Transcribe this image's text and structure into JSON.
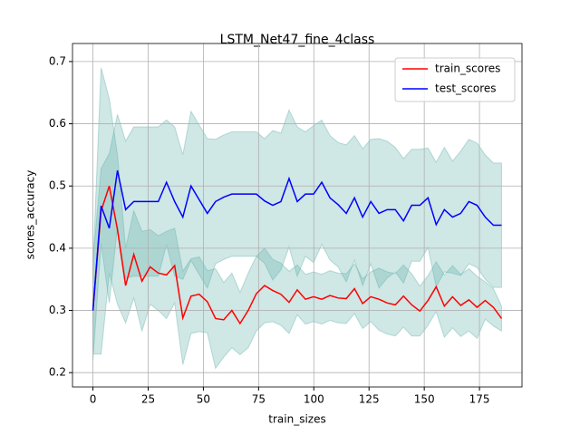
{
  "chart_data": {
    "type": "line",
    "title": "LSTM_Net47_fine_4class",
    "xlabel": "train_sizes",
    "ylabel": "scores_accuracy",
    "x": [
      0,
      3.7,
      7.4,
      11.1,
      14.8,
      18.5,
      22.2,
      25.9,
      29.6,
      33.3,
      37,
      40.7,
      44.4,
      48.1,
      51.8,
      55.5,
      59.2,
      62.9,
      66.6,
      70.3,
      74,
      77.7,
      81.4,
      85.1,
      88.8,
      92.5,
      96.2,
      99.9,
      103.6,
      107.3,
      111,
      114.7,
      118.4,
      122.1,
      125.8,
      129.5,
      133.2,
      136.9,
      140.6,
      144.3,
      148,
      151.7,
      155.4,
      159.1,
      162.8,
      166.5,
      170.2,
      173.9,
      177.6,
      181.3,
      185
    ],
    "series": [
      {
        "name": "train_scores",
        "color": "#ff0000",
        "band_color": "#5fb0a8",
        "values": [
          0.3,
          0.46,
          0.5,
          0.43,
          0.34,
          0.39,
          0.347,
          0.37,
          0.36,
          0.357,
          0.372,
          0.288,
          0.323,
          0.326,
          0.314,
          0.287,
          0.285,
          0.3,
          0.279,
          0.3,
          0.327,
          0.34,
          0.332,
          0.326,
          0.313,
          0.333,
          0.318,
          0.322,
          0.318,
          0.324,
          0.32,
          0.319,
          0.335,
          0.311,
          0.322,
          0.318,
          0.312,
          0.309,
          0.323,
          0.309,
          0.299,
          0.316,
          0.338,
          0.307,
          0.322,
          0.308,
          0.317,
          0.305,
          0.316,
          0.305,
          0.287
        ],
        "std": [
          0.07,
          0.23,
          0.14,
          0.12,
          0.06,
          0.07,
          0.08,
          0.06,
          0.06,
          0.07,
          0.06,
          0.075,
          0.06,
          0.06,
          0.05,
          0.08,
          0.06,
          0.06,
          0.05,
          0.06,
          0.06,
          0.06,
          0.05,
          0.05,
          0.05,
          0.04,
          0.04,
          0.04,
          0.04,
          0.04,
          0.04,
          0.04,
          0.04,
          0.04,
          0.04,
          0.05,
          0.05,
          0.05,
          0.05,
          0.05,
          0.04,
          0.04,
          0.04,
          0.05,
          0.05,
          0.05,
          0.05,
          0.05,
          0.03,
          0.03,
          0.02
        ]
      },
      {
        "name": "test_scores",
        "color": "#0000ff",
        "band_color": "#5fb0a8",
        "values": [
          0.3,
          0.468,
          0.432,
          0.525,
          0.462,
          0.475,
          0.475,
          0.475,
          0.475,
          0.506,
          0.475,
          0.45,
          0.5,
          0.478,
          0.456,
          0.475,
          0.482,
          0.487,
          0.487,
          0.487,
          0.487,
          0.476,
          0.469,
          0.475,
          0.512,
          0.475,
          0.487,
          0.487,
          0.506,
          0.481,
          0.47,
          0.456,
          0.481,
          0.45,
          0.475,
          0.456,
          0.462,
          0.462,
          0.444,
          0.469,
          0.469,
          0.481,
          0.438,
          0.462,
          0.45,
          0.456,
          0.475,
          0.469,
          0.45,
          0.437,
          0.437
        ],
        "std": [
          0.08,
          0.06,
          0.12,
          0.09,
          0.11,
          0.12,
          0.12,
          0.12,
          0.12,
          0.1,
          0.12,
          0.1,
          0.12,
          0.12,
          0.12,
          0.1,
          0.1,
          0.1,
          0.1,
          0.1,
          0.1,
          0.1,
          0.12,
          0.11,
          0.11,
          0.12,
          0.1,
          0.11,
          0.1,
          0.1,
          0.1,
          0.11,
          0.1,
          0.11,
          0.1,
          0.12,
          0.11,
          0.1,
          0.1,
          0.09,
          0.09,
          0.08,
          0.1,
          0.1,
          0.09,
          0.1,
          0.1,
          0.1,
          0.1,
          0.1,
          0.1
        ]
      }
    ],
    "xlim": [
      -9.25,
      194.25
    ],
    "xticks": [
      0,
      25,
      50,
      75,
      100,
      125,
      150,
      175
    ],
    "ylim": [
      0.177,
      0.729
    ],
    "yticks": [
      0.2,
      0.3,
      0.4,
      0.5,
      0.6,
      0.7
    ],
    "grid": true,
    "legend": "upper right"
  }
}
